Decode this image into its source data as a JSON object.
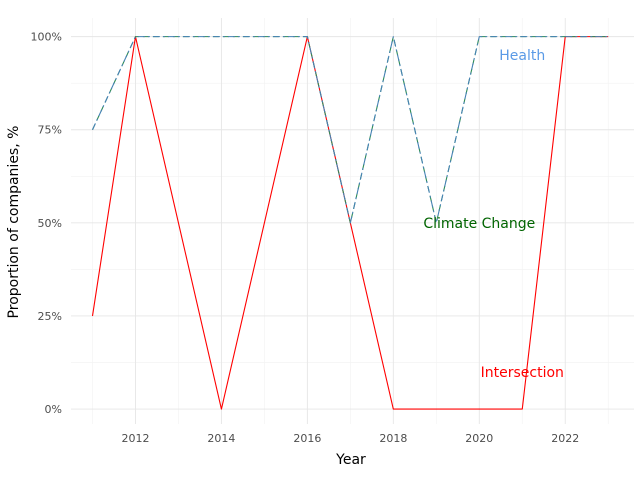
{
  "chart_data": {
    "type": "line",
    "xlabel": "Year",
    "ylabel": "Proportion of companies, %",
    "xlim": [
      2010.5,
      2023.6
    ],
    "ylim": [
      -0.04,
      1.05
    ],
    "x_ticks": [
      2012,
      2014,
      2016,
      2018,
      2020,
      2022
    ],
    "x_tick_labels": [
      "2012",
      "2014",
      "2016",
      "2018",
      "2020",
      "2022"
    ],
    "y_ticks": [
      0,
      0.25,
      0.5,
      0.75,
      1.0
    ],
    "y_tick_labels": [
      "0%",
      "25%",
      "50%",
      "75%",
      "100%"
    ],
    "grid": true,
    "legend": "none",
    "x": [
      2011,
      2012,
      2013,
      2014,
      2015,
      2016,
      2017,
      2018,
      2019,
      2020,
      2021,
      2022,
      2023
    ],
    "series": [
      {
        "id": "intersection",
        "values": [
          0.25,
          1.0,
          0.5,
          0.0,
          0.5,
          1.0,
          0.5,
          0.0,
          0.0,
          0.0,
          0.0,
          1.0,
          1.0
        ],
        "color": "#ff0000",
        "dash": "solid"
      },
      {
        "id": "climate",
        "values": [
          0.75,
          1.0,
          1.0,
          1.0,
          1.0,
          1.0,
          0.5,
          1.0,
          0.5,
          1.0,
          1.0,
          1.0,
          1.0
        ],
        "color": "#2e8b57",
        "dash": "dashed"
      },
      {
        "id": "health",
        "values": [
          0.75,
          1.0,
          1.0,
          1.0,
          1.0,
          1.0,
          0.5,
          1.0,
          0.5,
          1.0,
          1.0,
          1.0,
          1.0
        ],
        "color": "#4682b4",
        "dash": "dashdot"
      }
    ],
    "annotations": [
      {
        "id": "health",
        "text": "Health",
        "x": 2021.0,
        "y": 0.95,
        "color": "#5a9ae6"
      },
      {
        "id": "climate",
        "text": "Climate Change",
        "x": 2020.0,
        "y": 0.5,
        "color": "#006400"
      },
      {
        "id": "intersection",
        "text": "Intersection",
        "x": 2021.0,
        "y": 0.1,
        "color": "#ff0000"
      }
    ]
  }
}
